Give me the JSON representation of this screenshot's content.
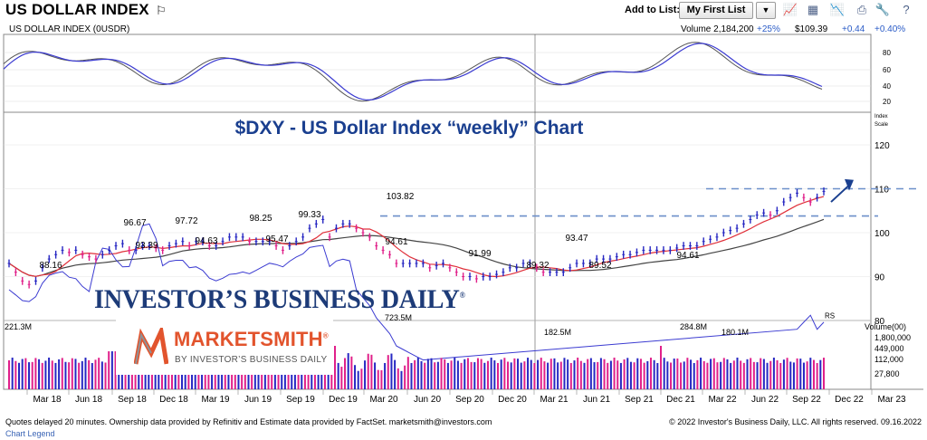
{
  "header": {
    "title": "US DOLLAR INDEX",
    "add_to_list_label": "Add to List:",
    "list_selected": "My First List",
    "tool_icons": [
      "line-chart-icon",
      "grid-icon",
      "area-chart-icon",
      "print-icon",
      "wrench-icon",
      "help-icon"
    ]
  },
  "oscillator": {
    "label": "US DOLLAR INDEX  (0USDR)",
    "volume_text": "Volume 2,184,200",
    "volume_pct": "+25%",
    "price": "$109.39",
    "change": "+0.44",
    "change_pct": "+0.40%",
    "ticks": [
      "80",
      "60",
      "40",
      "20"
    ]
  },
  "chart_data": {
    "type": "line",
    "title": "$DXY - US Dollar Index “weekly” Chart",
    "scale_label": [
      "Index",
      "Scale"
    ],
    "y_ticks": [
      "120",
      "110",
      "100",
      "90",
      "80"
    ],
    "ylim": [
      74,
      124
    ],
    "x_ticks": [
      "Mar 18",
      "Jun 18",
      "Sep 18",
      "Dec 18",
      "Mar 19",
      "Jun 19",
      "Sep 19",
      "Dec 19",
      "Mar 20",
      "Jun 20",
      "Sep 20",
      "Dec 20",
      "Mar 21",
      "Jun 21",
      "Sep 21",
      "Dec 21",
      "Mar 22",
      "Jun 22",
      "Sep 22",
      "Dec 22",
      "Mar 23"
    ],
    "price_annotations": [
      "88.16",
      "96.67",
      "93.39",
      "97.72",
      "94.63",
      "98.25",
      "95.47",
      "99.33",
      "103.82",
      "94.61",
      "91.99",
      "89.32",
      "93.47",
      "89.52",
      "94.61"
    ],
    "rs_label": "RS",
    "volume_scale": [
      "Volume(00)",
      "1,800,000",
      "449,000",
      "112,000",
      "27,800"
    ],
    "volume_annotations": [
      "221.3M",
      "723.5M",
      "182.5M",
      "284.8M",
      "180.1M"
    ],
    "price_series": [
      93,
      91,
      89,
      88.2,
      89,
      92,
      94,
      95,
      96,
      95.5,
      96,
      95,
      94.5,
      94,
      95,
      96,
      97,
      97.5,
      96,
      96,
      97,
      97,
      96.5,
      96,
      97,
      97.5,
      98,
      97,
      98,
      98,
      97,
      97,
      98,
      99,
      99,
      99,
      98,
      98,
      98,
      98,
      97,
      96,
      97,
      98,
      99,
      101,
      102,
      103,
      99,
      101,
      102,
      102,
      101,
      100,
      99,
      97,
      96,
      95,
      93,
      93,
      93,
      93,
      93,
      92,
      92.5,
      93,
      92,
      91,
      90,
      90,
      89.5,
      90,
      90,
      90.5,
      91,
      92,
      92,
      93,
      93,
      92,
      91,
      91,
      91,
      91,
      92,
      93,
      93,
      93,
      94,
      94,
      94,
      94.5,
      95,
      95,
      95.5,
      96,
      96,
      96,
      96,
      96,
      96.5,
      97,
      97,
      97,
      98,
      98.5,
      99,
      100,
      100.5,
      101,
      102,
      103,
      104,
      104.5,
      104,
      105,
      107,
      108,
      109,
      108,
      107,
      108,
      109.4
    ]
  },
  "footer": {
    "left": "Quotes delayed 20 minutes. Ownership data provided by Refinitiv and Estimate data provided by FactSet. marketsmith@investors.com",
    "right": "© 2022 Investor's Business Daily, LLC. All rights reserved.     09.16.2022",
    "legend_link": "Chart Legend"
  },
  "logos": {
    "ibd": "INVESTOR’S BUSINESS DAILY",
    "marketsmith": "MARKETSMITH",
    "marketsmith_sub": "BY INVESTOR’S BUSINESS DAILY"
  }
}
